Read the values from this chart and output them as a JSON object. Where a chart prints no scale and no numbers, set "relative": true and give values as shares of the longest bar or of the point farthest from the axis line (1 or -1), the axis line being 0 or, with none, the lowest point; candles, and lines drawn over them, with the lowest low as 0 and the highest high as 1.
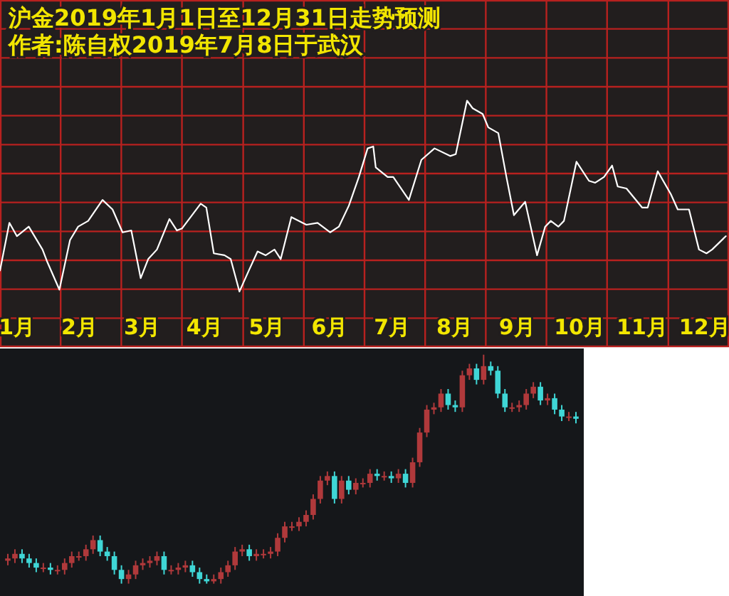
{
  "chart_data": [
    {
      "type": "line",
      "relative": true,
      "title": "沪金2019年1月1日至12月31日走势预测",
      "subtitle": "作者:陈自权2019年7月8日于武汉",
      "grid": true,
      "xlim": [
        0.73,
        12.39
      ],
      "xticks": [
        {
          "value": 1.7,
          "label": null
        },
        {
          "value": 2.67,
          "label": null
        },
        {
          "value": 3.64,
          "label": null
        },
        {
          "value": 4.62,
          "label": null
        },
        {
          "value": 5.59,
          "label": null
        },
        {
          "value": 6.56,
          "label": null
        },
        {
          "value": 7.53,
          "label": null
        },
        {
          "value": 8.5,
          "label": null
        },
        {
          "value": 9.47,
          "label": null
        },
        {
          "value": 10.44,
          "label": null
        },
        {
          "value": 11.42,
          "label": null
        },
        {
          "value": 1,
          "label": "1月"
        },
        {
          "value": 2,
          "label": "2月"
        },
        {
          "value": 3,
          "label": "3月"
        },
        {
          "value": 4,
          "label": "4月"
        },
        {
          "value": 5,
          "label": "5月"
        },
        {
          "value": 6,
          "label": "6月"
        },
        {
          "value": 7,
          "label": "7月"
        },
        {
          "value": 8,
          "label": "8月"
        },
        {
          "value": 9,
          "label": "9月"
        },
        {
          "value": 10,
          "label": "10月"
        },
        {
          "value": 11,
          "label": "11月"
        },
        {
          "value": 12,
          "label": "12月"
        }
      ],
      "x": [
        0.73,
        0.88,
        1.0,
        1.19,
        1.41,
        1.48,
        1.68,
        1.85,
        1.98,
        2.14,
        2.37,
        2.53,
        2.69,
        2.83,
        2.98,
        3.1,
        3.24,
        3.44,
        3.56,
        3.64,
        3.94,
        4.03,
        4.15,
        4.32,
        4.42,
        4.56,
        4.71,
        4.85,
        4.98,
        5.12,
        5.22,
        5.39,
        5.63,
        5.81,
        6.01,
        6.15,
        6.31,
        6.47,
        6.61,
        6.7,
        6.74,
        6.93,
        7.02,
        7.27,
        7.47,
        7.68,
        7.93,
        8.02,
        8.2,
        8.29,
        8.45,
        8.54,
        8.7,
        8.83,
        8.95,
        9.13,
        9.32,
        9.45,
        9.54,
        9.66,
        9.75,
        9.95,
        10.15,
        10.25,
        10.39,
        10.52,
        10.61,
        10.75,
        11.0,
        11.09,
        11.25,
        11.46,
        11.57,
        11.75,
        11.91,
        12.03,
        12.12,
        12.34
      ],
      "series": [
        {
          "color": "#ffffff",
          "values": [
            0.11,
            0.36,
            0.29,
            0.34,
            0.22,
            0.16,
            0.01,
            0.27,
            0.34,
            0.37,
            0.48,
            0.43,
            0.31,
            0.32,
            0.07,
            0.17,
            0.22,
            0.38,
            0.32,
            0.33,
            0.46,
            0.44,
            0.2,
            0.19,
            0.17,
            0,
            0.11,
            0.21,
            0.19,
            0.22,
            0.17,
            0.39,
            0.35,
            0.36,
            0.31,
            0.34,
            0.45,
            0.6,
            0.75,
            0.76,
            0.65,
            0.6,
            0.6,
            0.48,
            0.69,
            0.75,
            0.71,
            0.72,
            1,
            0.96,
            0.93,
            0.86,
            0.83,
            0.6,
            0.4,
            0.47,
            0.19,
            0.34,
            0.37,
            0.34,
            0.37,
            0.68,
            0.58,
            0.57,
            0.6,
            0.66,
            0.55,
            0.54,
            0.44,
            0.44,
            0.63,
            0.51,
            0.43,
            0.43,
            0.22,
            0.2,
            0.22,
            0.29
          ]
        }
      ]
    },
    {
      "type": "candlestick",
      "relative": true,
      "categories": [
        null,
        null,
        null,
        null,
        null,
        null,
        null,
        null,
        null,
        null,
        null,
        null,
        null,
        null,
        null,
        null,
        null,
        null,
        null,
        null,
        null,
        null,
        null,
        null,
        null,
        null,
        null,
        null,
        null,
        null,
        null,
        null,
        null,
        null,
        null,
        null,
        null,
        null,
        null,
        null,
        null,
        null,
        null,
        null,
        null,
        null,
        null,
        null,
        null,
        null,
        null,
        null,
        null,
        null,
        null,
        null,
        null,
        null,
        null,
        null,
        null,
        null,
        null,
        null,
        null,
        null,
        null,
        null,
        null,
        null,
        null,
        null,
        null,
        null,
        null,
        null,
        null,
        null,
        null,
        null,
        null
      ],
      "ohlc": [
        [
          0.1,
          0.13,
          0.08,
          0.11
        ],
        [
          0.11,
          0.15,
          0.09,
          0.13
        ],
        [
          0.13,
          0.15,
          0.09,
          0.11
        ],
        [
          0.11,
          0.13,
          0.07,
          0.09
        ],
        [
          0.09,
          0.11,
          0.05,
          0.07
        ],
        [
          0.07,
          0.09,
          0.05,
          0.07
        ],
        [
          0.07,
          0.09,
          0.04,
          0.06
        ],
        [
          0.06,
          0.08,
          0.04,
          0.06
        ],
        [
          0.06,
          0.11,
          0.04,
          0.09
        ],
        [
          0.09,
          0.14,
          0.07,
          0.12
        ],
        [
          0.12,
          0.14,
          0.1,
          0.12
        ],
        [
          0.12,
          0.17,
          0.1,
          0.15
        ],
        [
          0.15,
          0.21,
          0.13,
          0.19
        ],
        [
          0.19,
          0.21,
          0.12,
          0.14
        ],
        [
          0.14,
          0.16,
          0.1,
          0.12
        ],
        [
          0.12,
          0.14,
          0.04,
          0.06
        ],
        [
          0.06,
          0.08,
          0.0,
          0.02
        ],
        [
          0.02,
          0.06,
          0.0,
          0.04
        ],
        [
          0.04,
          0.1,
          0.02,
          0.08
        ],
        [
          0.08,
          0.11,
          0.06,
          0.09
        ],
        [
          0.09,
          0.12,
          0.07,
          0.1
        ],
        [
          0.1,
          0.14,
          0.08,
          0.12
        ],
        [
          0.12,
          0.14,
          0.04,
          0.06
        ],
        [
          0.06,
          0.08,
          0.04,
          0.06
        ],
        [
          0.06,
          0.09,
          0.04,
          0.07
        ],
        [
          0.07,
          0.1,
          0.05,
          0.08
        ],
        [
          0.08,
          0.1,
          0.03,
          0.05
        ],
        [
          0.05,
          0.07,
          0.0,
          0.02
        ],
        [
          0.02,
          0.04,
          0.0,
          0.01
        ],
        [
          0.01,
          0.04,
          0.0,
          0.02
        ],
        [
          0.02,
          0.07,
          0.0,
          0.05
        ],
        [
          0.05,
          0.1,
          0.03,
          0.08
        ],
        [
          0.08,
          0.16,
          0.06,
          0.14
        ],
        [
          0.14,
          0.17,
          0.12,
          0.15
        ],
        [
          0.15,
          0.17,
          0.1,
          0.12
        ],
        [
          0.12,
          0.15,
          0.1,
          0.13
        ],
        [
          0.13,
          0.15,
          0.11,
          0.13
        ],
        [
          0.13,
          0.16,
          0.11,
          0.14
        ],
        [
          0.14,
          0.22,
          0.12,
          0.2
        ],
        [
          0.2,
          0.27,
          0.18,
          0.25
        ],
        [
          0.25,
          0.27,
          0.23,
          0.25
        ],
        [
          0.25,
          0.29,
          0.23,
          0.27
        ],
        [
          0.27,
          0.32,
          0.25,
          0.3
        ],
        [
          0.3,
          0.39,
          0.28,
          0.37
        ],
        [
          0.37,
          0.47,
          0.35,
          0.45
        ],
        [
          0.45,
          0.49,
          0.43,
          0.47
        ],
        [
          0.47,
          0.49,
          0.35,
          0.37
        ],
        [
          0.37,
          0.47,
          0.35,
          0.45
        ],
        [
          0.45,
          0.47,
          0.39,
          0.41
        ],
        [
          0.41,
          0.46,
          0.39,
          0.44
        ],
        [
          0.44,
          0.46,
          0.42,
          0.44
        ],
        [
          0.44,
          0.5,
          0.42,
          0.48
        ],
        [
          0.48,
          0.5,
          0.45,
          0.47
        ],
        [
          0.47,
          0.49,
          0.45,
          0.47
        ],
        [
          0.47,
          0.49,
          0.44,
          0.46
        ],
        [
          0.46,
          0.5,
          0.44,
          0.48
        ],
        [
          0.48,
          0.5,
          0.42,
          0.44
        ],
        [
          0.44,
          0.55,
          0.42,
          0.53
        ],
        [
          0.53,
          0.68,
          0.51,
          0.66
        ],
        [
          0.66,
          0.78,
          0.64,
          0.76
        ],
        [
          0.76,
          0.79,
          0.74,
          0.77
        ],
        [
          0.77,
          0.85,
          0.75,
          0.83
        ],
        [
          0.83,
          0.85,
          0.76,
          0.78
        ],
        [
          0.78,
          0.8,
          0.75,
          0.77
        ],
        [
          0.77,
          0.93,
          0.75,
          0.91
        ],
        [
          0.91,
          0.96,
          0.89,
          0.94
        ],
        [
          0.94,
          0.96,
          0.87,
          0.89
        ],
        [
          0.89,
          1.0,
          0.87,
          0.95
        ],
        [
          0.95,
          0.97,
          0.91,
          0.93
        ],
        [
          0.93,
          0.95,
          0.81,
          0.83
        ],
        [
          0.83,
          0.85,
          0.75,
          0.77
        ],
        [
          0.77,
          0.79,
          0.75,
          0.77
        ],
        [
          0.77,
          0.8,
          0.75,
          0.78
        ],
        [
          0.78,
          0.85,
          0.76,
          0.83
        ],
        [
          0.83,
          0.88,
          0.81,
          0.86
        ],
        [
          0.86,
          0.88,
          0.78,
          0.8
        ],
        [
          0.8,
          0.83,
          0.78,
          0.81
        ],
        [
          0.81,
          0.83,
          0.74,
          0.76
        ],
        [
          0.76,
          0.78,
          0.71,
          0.73
        ],
        [
          0.73,
          0.75,
          0.71,
          0.73
        ],
        [
          0.73,
          0.75,
          0.7,
          0.72
        ]
      ],
      "colors": [
        "#b0393b",
        "#b0393b",
        "#3fd6d6",
        "#3fd6d6",
        "#3fd6d6",
        "#b0393b",
        "#3fd6d6",
        "#b0393b",
        "#b0393b",
        "#b0393b",
        "#b0393b",
        "#b0393b",
        "#b0393b",
        "#3fd6d6",
        "#3fd6d6",
        "#3fd6d6",
        "#3fd6d6",
        "#b0393b",
        "#b0393b",
        "#b0393b",
        "#b0393b",
        "#b0393b",
        "#3fd6d6",
        "#b0393b",
        "#b0393b",
        "#b0393b",
        "#3fd6d6",
        "#3fd6d6",
        "#3fd6d6",
        "#b0393b",
        "#b0393b",
        "#b0393b",
        "#b0393b",
        "#b0393b",
        "#3fd6d6",
        "#b0393b",
        "#b0393b",
        "#b0393b",
        "#b0393b",
        "#b0393b",
        "#b0393b",
        "#b0393b",
        "#b0393b",
        "#b0393b",
        "#b0393b",
        "#b0393b",
        "#3fd6d6",
        "#b0393b",
        "#3fd6d6",
        "#b0393b",
        "#b0393b",
        "#b0393b",
        "#3fd6d6",
        "#b0393b",
        "#3fd6d6",
        "#b0393b",
        "#3fd6d6",
        "#b0393b",
        "#b0393b",
        "#b0393b",
        "#b0393b",
        "#b0393b",
        "#3fd6d6",
        "#3fd6d6",
        "#b0393b",
        "#b0393b",
        "#3fd6d6",
        "#b0393b",
        "#3fd6d6",
        "#3fd6d6",
        "#3fd6d6",
        "#b0393b",
        "#b0393b",
        "#b0393b",
        "#b0393b",
        "#3fd6d6",
        "#b0393b",
        "#3fd6d6",
        "#3fd6d6",
        "#b0393b",
        "#3fd6d6"
      ]
    }
  ]
}
